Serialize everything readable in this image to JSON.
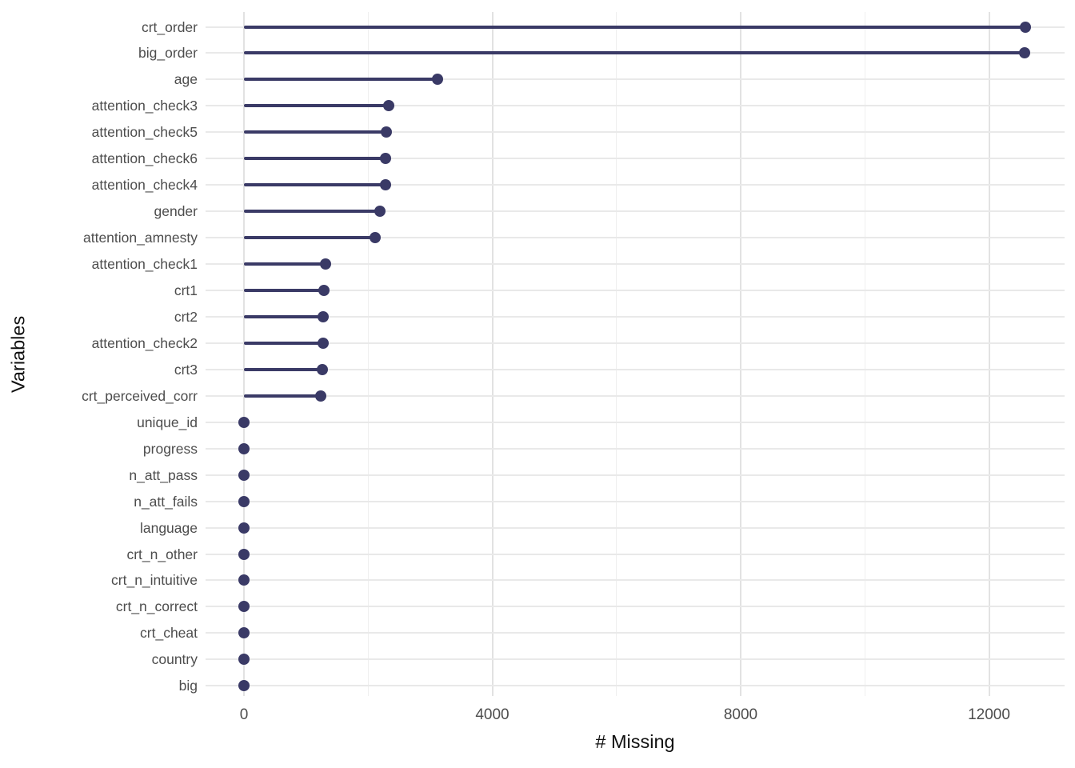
{
  "chart_data": {
    "type": "bar",
    "variant": "lollipop",
    "orientation": "horizontal",
    "title": "",
    "xlabel": "# Missing",
    "ylabel": "Variables",
    "categories": [
      "crt_order",
      "big_order",
      "age",
      "attention_check3",
      "attention_check5",
      "attention_check6",
      "attention_check4",
      "gender",
      "attention_amnesty",
      "attention_check1",
      "crt1",
      "crt2",
      "attention_check2",
      "crt3",
      "crt_perceived_corr",
      "unique_id",
      "progress",
      "n_att_pass",
      "n_att_fails",
      "language",
      "crt_n_other",
      "crt_n_intuitive",
      "crt_n_correct",
      "crt_cheat",
      "country",
      "big"
    ],
    "values": [
      12580,
      12570,
      3120,
      2330,
      2295,
      2285,
      2280,
      2190,
      2115,
      1315,
      1290,
      1278,
      1275,
      1264,
      1238,
      0,
      0,
      0,
      0,
      0,
      0,
      0,
      0,
      0,
      0,
      0
    ],
    "x_ticks": [
      0,
      4000,
      8000,
      12000
    ],
    "x_minor_gridlines": [
      2000,
      6000,
      10000
    ],
    "xlim": [
      0,
      13200
    ],
    "grid": true,
    "legend": false,
    "colors": {
      "point": "#3a3a66",
      "stem": "#3a3a66",
      "grid_major": "#e2e2e2",
      "grid_minor": "#efefef",
      "row_gridline": "#e9e9e9",
      "axis_text": "#4d4d4d",
      "axis_title": "#111111",
      "background": "#ffffff"
    }
  }
}
